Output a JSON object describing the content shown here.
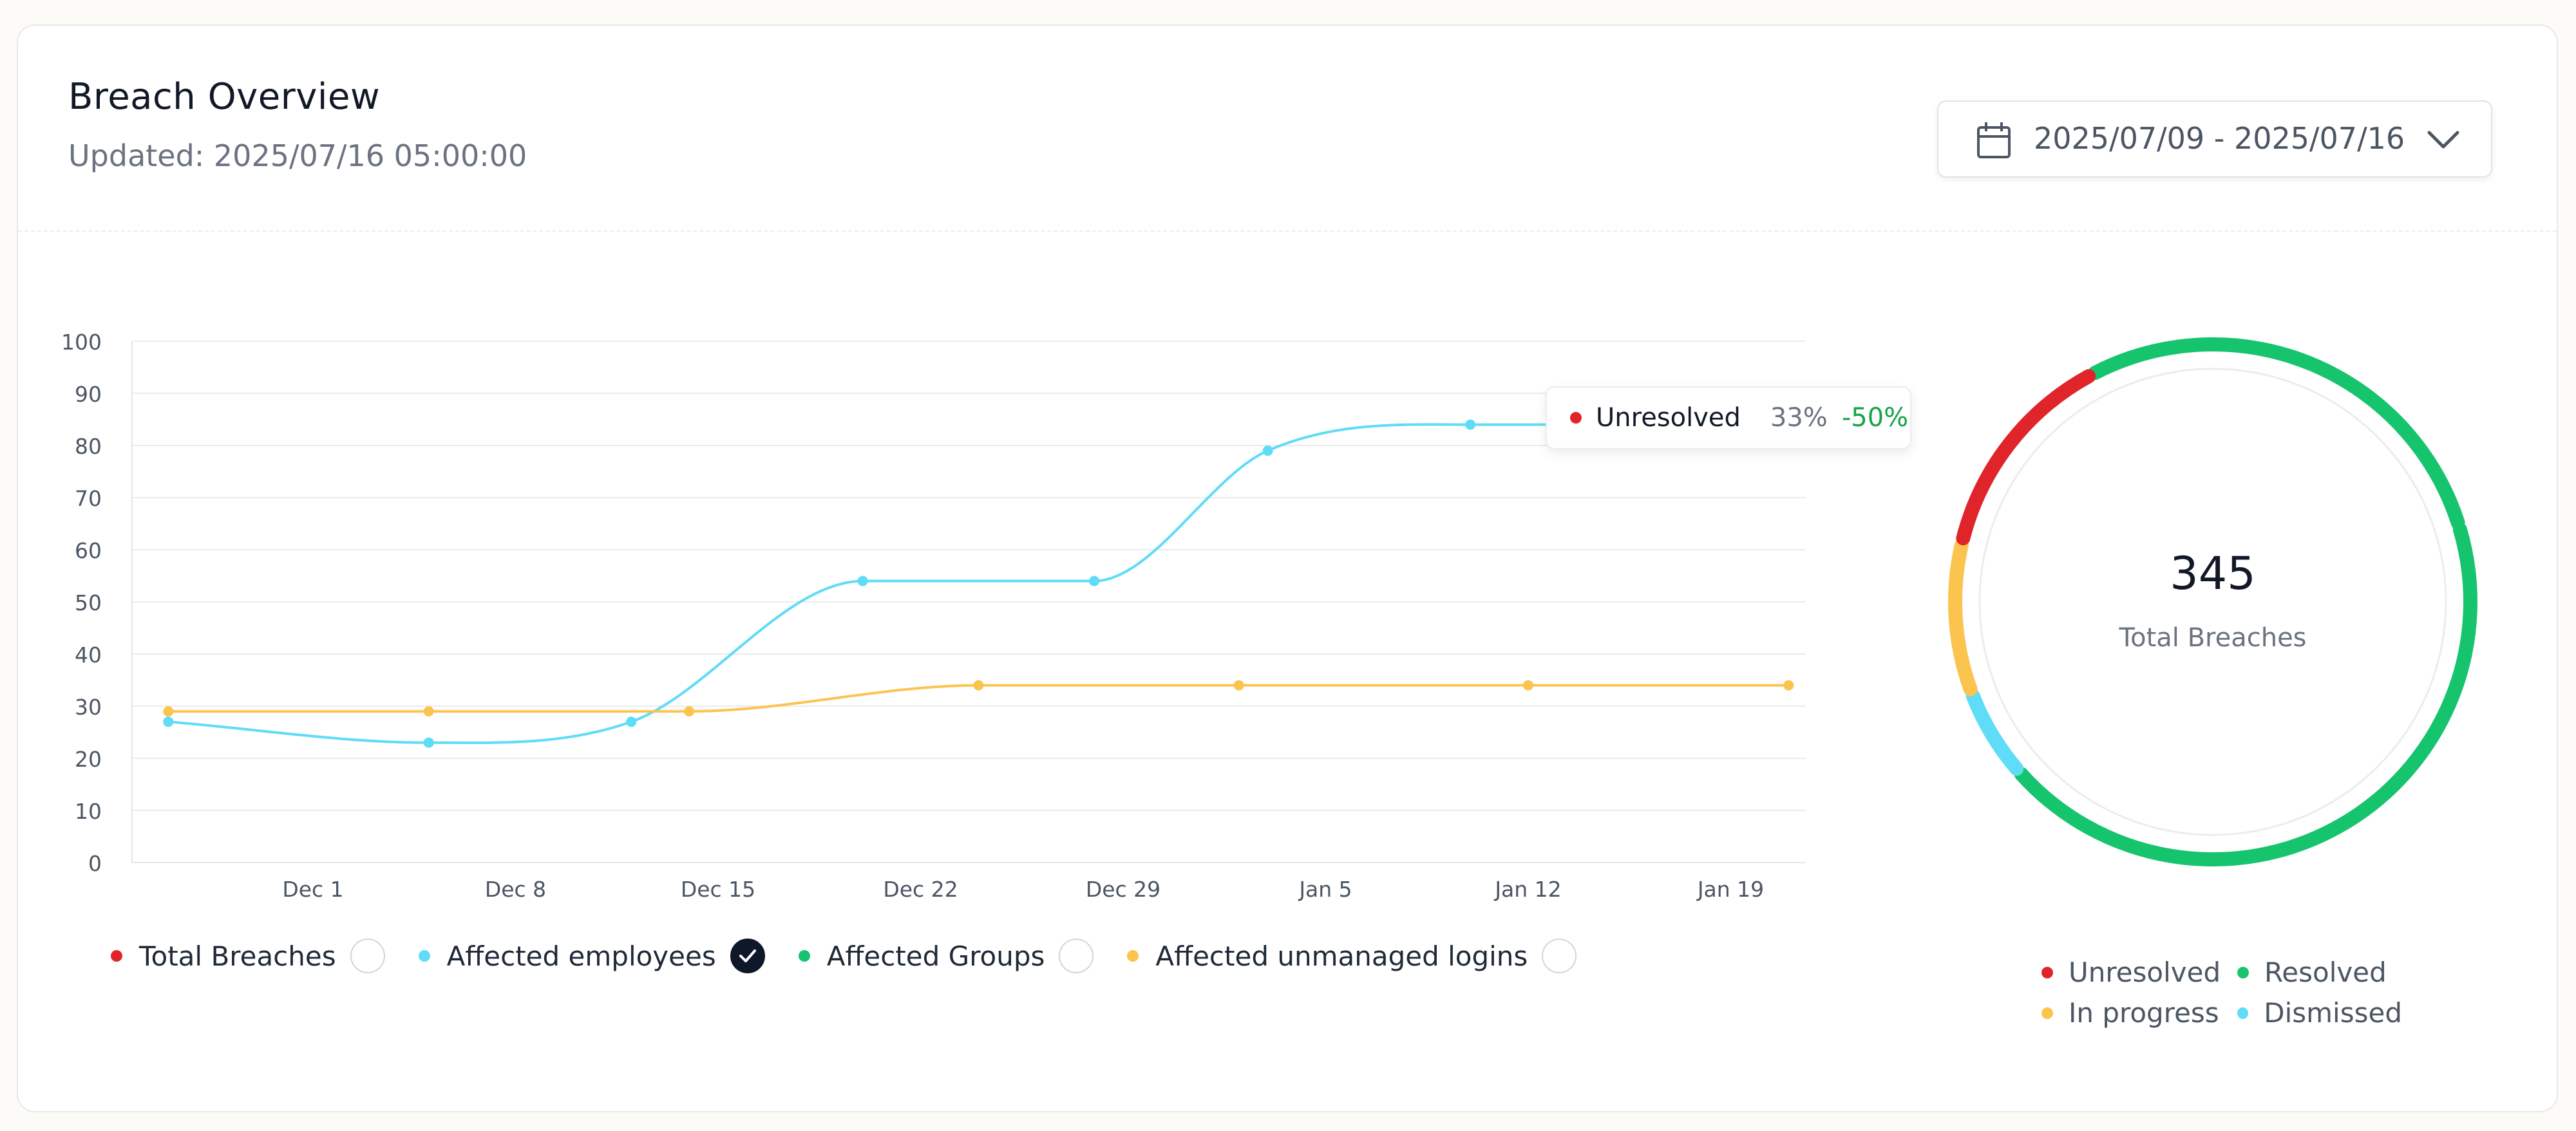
{
  "header": {
    "title": "Breach Overview",
    "updated": "Updated: 2025/07/16 05:00:00",
    "date_range": "2025/07/09 - 2025/07/16"
  },
  "icons": {
    "calendar": "calendar-icon",
    "chevron": "chevron-down-icon",
    "check": "check-icon"
  },
  "chart_data": [
    {
      "type": "line",
      "title": "",
      "xlabel": "",
      "ylabel": "",
      "ylim": [
        0,
        100
      ],
      "yticks": [
        "0",
        "10",
        "20",
        "30",
        "40",
        "50",
        "60",
        "70",
        "80",
        "90",
        "100"
      ],
      "x_tick_labels": [
        "Dec 1",
        "Dec 8",
        "Dec 15",
        "Dec 22",
        "Dec 29",
        "Jan 5",
        "Jan 12",
        "Jan 19"
      ],
      "grid": true,
      "series": [
        {
          "name": "Affected employees",
          "color": "#5fdcf7",
          "x": [
            "Nov 26",
            "Dec 5",
            "Dec 12",
            "Dec 20",
            "Dec 28",
            "Jan 3",
            "Jan 10",
            "Jan 13"
          ],
          "values": [
            27,
            23,
            27,
            54,
            54,
            79,
            84,
            84
          ]
        },
        {
          "name": "Affected unmanaged logins",
          "color": "#fbc44f",
          "x": [
            "Nov 26",
            "Dec 5",
            "Dec 14",
            "Dec 24",
            "Jan 2",
            "Jan 12",
            "Jan 21"
          ],
          "values": [
            29,
            29,
            29,
            34,
            34,
            34,
            34
          ]
        }
      ],
      "legend": [
        {
          "label": "Total Breaches",
          "color": "#e0252a",
          "checked": false
        },
        {
          "label": "Affected employees",
          "color": "#5fdcf7",
          "checked": true
        },
        {
          "label": "Affected Groups",
          "color": "#17c46e",
          "checked": false
        },
        {
          "label": "Affected unmanaged logins",
          "color": "#fbc44f",
          "checked": false
        }
      ],
      "tooltip": {
        "label": "Unresolved",
        "color": "#e0252a",
        "percent": "33%",
        "change": "-50%"
      }
    },
    {
      "type": "pie",
      "subtype": "donut",
      "title": "",
      "center_value": "345",
      "center_label": "Total Breaches",
      "slices": [
        {
          "label": "Resolved",
          "value": 26.0,
          "color": "#17c46e"
        },
        {
          "label": "Resolved",
          "value": 40.2,
          "color": "#17c46e"
        },
        {
          "label": "Dismissed",
          "value": 5.3,
          "color": "#5fdcf7"
        },
        {
          "label": "In progress",
          "value": 8.8,
          "color": "#fbc44f"
        },
        {
          "label": "Unresolved",
          "value": 12.5,
          "color": "#e0252a"
        }
      ],
      "legend": [
        {
          "label": "Unresolved",
          "color": "#e0252a"
        },
        {
          "label": "Resolved",
          "color": "#17c46e"
        },
        {
          "label": "In progress",
          "color": "#fbc44f"
        },
        {
          "label": "Dismissed",
          "color": "#5fdcf7"
        }
      ]
    }
  ]
}
